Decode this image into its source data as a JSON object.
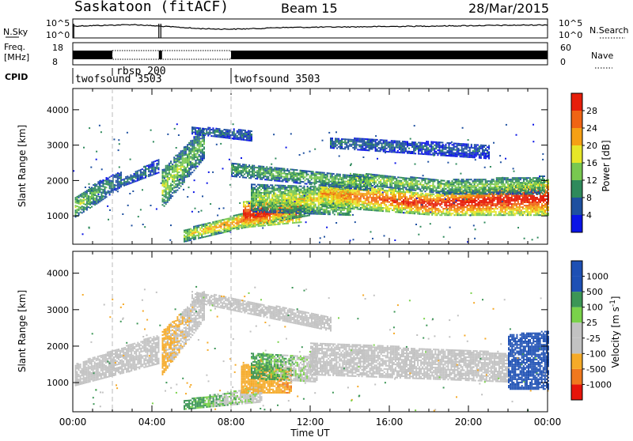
{
  "header": {
    "station": "Saskatoon (fitACF)",
    "beam": "Beam 15",
    "date": "28/Mar/2015"
  },
  "noise_panel": {
    "left_label": "N.Sky",
    "left_ticks": [
      "10^5",
      "10^0"
    ],
    "right_ticks": [
      "10^5",
      "10^0"
    ],
    "right_label": "N.Search"
  },
  "freq_panel": {
    "left_label_1": "Freq.",
    "left_label_2": "[MHz]",
    "left_ticks": [
      "18",
      "8"
    ],
    "right_ticks": [
      "60",
      "0"
    ],
    "right_label": "Nave"
  },
  "cpid": {
    "label": "CPID",
    "segments": [
      {
        "start_h": 0.0,
        "text": "twofsound 3503",
        "row": "low"
      },
      {
        "start_h": 2.0,
        "text": "rbsp 200",
        "row": "high"
      },
      {
        "start_h": 8.0,
        "text": "twofsound 3503",
        "row": "low"
      }
    ]
  },
  "colors": {
    "power": [
      "#0a14e6",
      "#1e50a0",
      "#2f8a5c",
      "#78c850",
      "#e6e628",
      "#f5a014",
      "#f06414",
      "#e61e0a"
    ],
    "velocity": [
      "#e6140a",
      "#f0781e",
      "#f5aa28",
      "#bebebe",
      "#bebebe",
      "#7ad24a",
      "#3c9656",
      "#1e50b4"
    ],
    "gray": "#c2c2c2"
  },
  "chart_data": [
    {
      "type": "heatmap",
      "title": "Power",
      "ylabel": "Slant Range [km]",
      "yticks": [
        1000,
        2000,
        3000,
        4000
      ],
      "ylim": [
        200,
        4600
      ],
      "colorbar": {
        "label": "Power [dB]",
        "ticks": [
          "4",
          "8",
          "12",
          "16",
          "20",
          "24",
          "28"
        ],
        "range": [
          0,
          32
        ]
      },
      "bands": [
        {
          "t": [
            0.1,
            2.4
          ],
          "r0": [
            950,
            1350,
            1800
          ],
          "r1": [
            1500,
            1950,
            2250
          ],
          "strength": [
            14,
            10,
            7
          ]
        },
        {
          "t": [
            2.4,
            4.3
          ],
          "r0": [
            1800,
            2200
          ],
          "r1": [
            2000,
            2600
          ],
          "strength": [
            8,
            6
          ]
        },
        {
          "t": [
            4.5,
            6.6
          ],
          "r0": [
            1200,
            2600
          ],
          "r1": [
            2300,
            3500
          ],
          "strength": [
            14,
            10
          ]
        },
        {
          "t": [
            5.6,
            9.8
          ],
          "r0": [
            250,
            800
          ],
          "r1": [
            600,
            1250
          ],
          "strength": [
            14,
            24
          ]
        },
        {
          "t": [
            8.6,
            11.5
          ],
          "r0": [
            650,
            800
          ],
          "r1": [
            1400,
            1500
          ],
          "strength": [
            26,
            28
          ]
        },
        {
          "t": [
            10.0,
            12.0
          ],
          "r0": [
            800,
            1000
          ],
          "r1": [
            1300,
            1600
          ],
          "strength": [
            22,
            16
          ]
        },
        {
          "t": [
            9.0,
            14.0
          ],
          "r0": [
            1100,
            1000
          ],
          "r1": [
            1900,
            1800
          ],
          "strength": [
            12,
            18
          ]
        },
        {
          "t": [
            12.5,
            24.0
          ],
          "r0": [
            1250,
            1000,
            1000
          ],
          "r1": [
            2000,
            1600,
            2000
          ],
          "strength": [
            18,
            26,
            26
          ]
        },
        {
          "t": [
            14.0,
            23.8
          ],
          "r0": [
            1900,
            1600,
            1600
          ],
          "r1": [
            2200,
            2000,
            2100
          ],
          "strength": [
            14,
            12,
            12
          ]
        },
        {
          "t": [
            8.0,
            15.0
          ],
          "r0": [
            2100,
            1700
          ],
          "r1": [
            2500,
            2100
          ],
          "strength": [
            10,
            12
          ]
        },
        {
          "t": [
            13.0,
            21.0
          ],
          "r0": [
            2900,
            2600
          ],
          "r1": [
            3200,
            3000
          ],
          "strength": [
            7,
            5
          ]
        },
        {
          "t": [
            6.0,
            9.0
          ],
          "r0": [
            3300,
            3100
          ],
          "r1": [
            3500,
            3400
          ],
          "strength": [
            8,
            6
          ]
        }
      ]
    },
    {
      "type": "heatmap",
      "title": "Velocity",
      "ylabel": "Slant Range [km]",
      "xlabel": "Time UT",
      "xticks": [
        "00:00",
        "04:00",
        "08:00",
        "12:00",
        "16:00",
        "20:00",
        "00:00"
      ],
      "xlim": [
        0,
        24
      ],
      "yticks": [
        1000,
        2000,
        3000,
        4000
      ],
      "ylim": [
        200,
        4600
      ],
      "colorbar": {
        "label": "Velocity [m s^-1]",
        "ticks": [
          "-1000",
          "-500",
          "-100",
          "-25",
          "25",
          "100",
          "500",
          "1000"
        ]
      },
      "bands": [
        {
          "t": [
            0.1,
            4.3
          ],
          "r0": [
            900,
            1500
          ],
          "r1": [
            1500,
            2300
          ],
          "velocity": [
            0,
            0
          ]
        },
        {
          "t": [
            4.5,
            6.6
          ],
          "r0": [
            1200,
            2700
          ],
          "r1": [
            2400,
            3500
          ],
          "velocity": [
            -150,
            0
          ]
        },
        {
          "t": [
            5.6,
            9.5
          ],
          "r0": [
            250,
            450
          ],
          "r1": [
            500,
            900
          ],
          "velocity": [
            150,
            0
          ]
        },
        {
          "t": [
            8.5,
            11.0
          ],
          "r0": [
            700,
            700
          ],
          "r1": [
            1500,
            1400
          ],
          "velocity": [
            -300,
            -500
          ]
        },
        {
          "t": [
            9.0,
            12.3
          ],
          "r0": [
            1100,
            1000
          ],
          "r1": [
            1800,
            1700
          ],
          "velocity": [
            150,
            0
          ]
        },
        {
          "t": [
            12.0,
            22.0
          ],
          "r0": [
            1200,
            1000
          ],
          "r1": [
            2100,
            1800
          ],
          "velocity": [
            0,
            0
          ]
        },
        {
          "t": [
            6.0,
            13.0
          ],
          "r0": [
            3200,
            2400
          ],
          "r1": [
            3500,
            2800
          ],
          "velocity": [
            0,
            0
          ]
        },
        {
          "t": [
            22.0,
            24.0
          ],
          "r0": [
            800,
            800
          ],
          "r1": [
            2300,
            2400
          ],
          "velocity": [
            600,
            900
          ]
        }
      ]
    }
  ]
}
